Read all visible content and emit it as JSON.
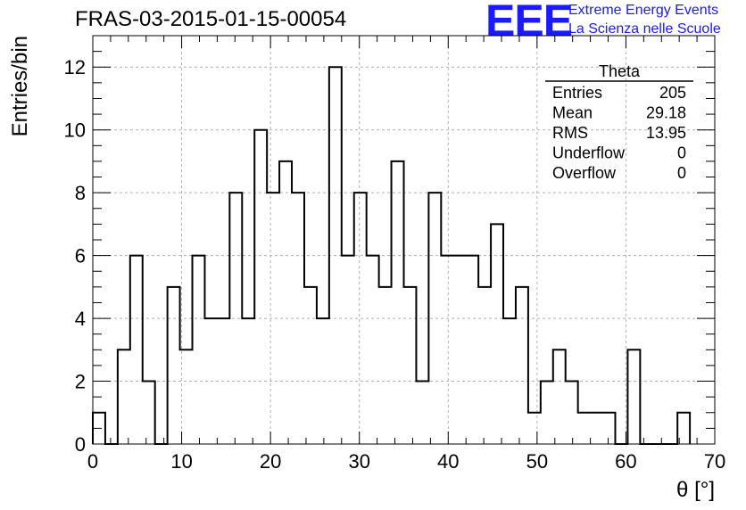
{
  "title": "FRAS-03-2015-01-15-00054",
  "logo": {
    "mark": "EEE",
    "line1": "Extreme Energy Events",
    "line2": "La Scienza nelle Scuole"
  },
  "chart_data": {
    "type": "bar",
    "histogram": true,
    "xlabel": "θ [°]",
    "ylabel": "Entries/bin",
    "xlim": [
      0,
      70
    ],
    "ylim": [
      0,
      13
    ],
    "bin_width": 1.4,
    "bin_edges_start": 0,
    "values": [
      1,
      0,
      3,
      6,
      2,
      0,
      5,
      3,
      6,
      4,
      4,
      8,
      4,
      10,
      8,
      9,
      8,
      5,
      4,
      12,
      6,
      8,
      6,
      5,
      9,
      5,
      2,
      8,
      6,
      6,
      6,
      5,
      7,
      4,
      5,
      1,
      2,
      3,
      2,
      1,
      1,
      1,
      0,
      3,
      0,
      0,
      0,
      1
    ],
    "xticks": [
      "0",
      "10",
      "20",
      "30",
      "40",
      "50",
      "60",
      "70"
    ],
    "yticks": [
      "0",
      "2",
      "4",
      "6",
      "8",
      "10",
      "12"
    ],
    "grid": true,
    "stats_box": {
      "title": "Theta",
      "rows": [
        {
          "label": "Entries",
          "value": "205"
        },
        {
          "label": "Mean",
          "value": "29.18"
        },
        {
          "label": "RMS",
          "value": "13.95"
        },
        {
          "label": "Underflow",
          "value": "0"
        },
        {
          "label": "Overflow",
          "value": "0"
        }
      ]
    }
  }
}
